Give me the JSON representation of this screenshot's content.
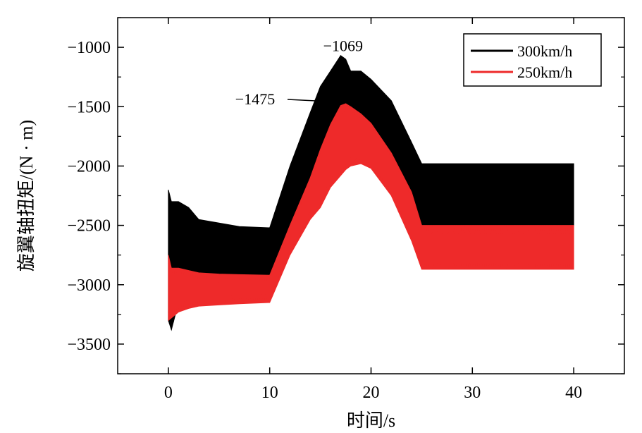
{
  "chart_data": {
    "type": "area",
    "xlabel": "时间/s",
    "ylabel": "旋翼轴扭矩/(N · m)",
    "xlim": [
      -5,
      45
    ],
    "ylim": [
      -3750,
      -750
    ],
    "x_ticks": [
      0,
      10,
      20,
      30,
      40
    ],
    "y_ticks": [
      -1000,
      -1500,
      -2000,
      -2500,
      -3000,
      -3500
    ],
    "grid": false,
    "legend_position": "top-right",
    "series": [
      {
        "name": "300km/h",
        "color": "#000000",
        "x": [
          0,
          0.3,
          1,
          2,
          3,
          5,
          7,
          10,
          12,
          14,
          15,
          16,
          17,
          17.5,
          18,
          19,
          20,
          22,
          24,
          25,
          30,
          35,
          40
        ],
        "upper": [
          -2200,
          -2300,
          -2300,
          -2350,
          -2450,
          -2480,
          -2510,
          -2520,
          -2000,
          -1550,
          -1330,
          -1200,
          -1069,
          -1100,
          -1200,
          -1200,
          -1270,
          -1450,
          -1800,
          -1980,
          -1980,
          -1980,
          -1980
        ],
        "lower": [
          -3300,
          -3380,
          -3150,
          -3050,
          -3000,
          -2960,
          -2930,
          -2920,
          -2600,
          -2260,
          -2080,
          -1900,
          -1720,
          -1670,
          -1700,
          -1760,
          -1850,
          -2120,
          -2400,
          -2500,
          -2500,
          -2500,
          -2500
        ]
      },
      {
        "name": "250km/h",
        "color": "#ee2a2a",
        "x": [
          0,
          0.3,
          1,
          2,
          3,
          5,
          7,
          10,
          12,
          14,
          15,
          16,
          17,
          17.5,
          18,
          19,
          20,
          22,
          24,
          25,
          30,
          35,
          40
        ],
        "upper": [
          -2750,
          -2860,
          -2860,
          -2880,
          -2900,
          -2910,
          -2915,
          -2920,
          -2500,
          -2100,
          -1860,
          -1650,
          -1490,
          -1475,
          -1500,
          -1560,
          -1640,
          -1890,
          -2220,
          -2500,
          -2500,
          -2500,
          -2500
        ],
        "lower": [
          -3300,
          -3280,
          -3230,
          -3200,
          -3180,
          -3170,
          -3160,
          -3150,
          -2750,
          -2450,
          -2350,
          -2180,
          -2080,
          -2030,
          -2000,
          -1980,
          -2020,
          -2250,
          -2630,
          -2870,
          -2870,
          -2870,
          -2870
        ]
      }
    ],
    "annotations": [
      {
        "text": "−1069",
        "x": 17.1,
        "y": -1069
      },
      {
        "text": "−1475",
        "x": 16.5,
        "y": -1475
      }
    ]
  }
}
